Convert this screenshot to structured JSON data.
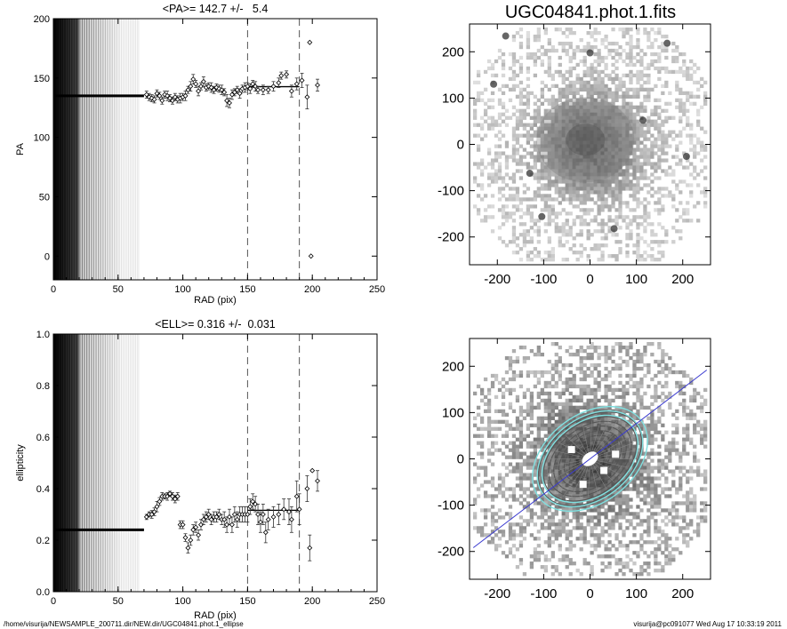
{
  "chart_data": [
    {
      "type": "scatter",
      "title": "<PA>= 142.7 +/-   5.4",
      "xlabel": "RAD (pix)",
      "ylabel": "PA",
      "xlim": [
        0,
        250
      ],
      "ylim": [
        -20,
        200
      ],
      "xticks": [
        "0",
        "50",
        "100",
        "150",
        "200",
        "250"
      ],
      "yticks": [
        "0",
        "50",
        "100",
        "150",
        "200"
      ],
      "ytick_values": [
        0,
        50,
        100,
        150,
        200
      ],
      "vlines_dashed": [
        150,
        190
      ],
      "mean_line": {
        "x": [
          150,
          190
        ],
        "y": 142.7
      },
      "inner_constant": {
        "x_end": 70,
        "y": 135
      },
      "shaded_until": 67,
      "points": [
        [
          72,
          136,
          3
        ],
        [
          74,
          134,
          3
        ],
        [
          76,
          133,
          3
        ],
        [
          78,
          132,
          3
        ],
        [
          80,
          137,
          3
        ],
        [
          82,
          135,
          3
        ],
        [
          84,
          131,
          3
        ],
        [
          86,
          136,
          3
        ],
        [
          88,
          135,
          4
        ],
        [
          90,
          133,
          3
        ],
        [
          92,
          131,
          3
        ],
        [
          94,
          134,
          3
        ],
        [
          96,
          132,
          3
        ],
        [
          98,
          133,
          4
        ],
        [
          100,
          134,
          3
        ],
        [
          102,
          135,
          4
        ],
        [
          104,
          140,
          3
        ],
        [
          106,
          143,
          4
        ],
        [
          108,
          149,
          4
        ],
        [
          110,
          145,
          3
        ],
        [
          112,
          139,
          4
        ],
        [
          114,
          143,
          3
        ],
        [
          116,
          147,
          4
        ],
        [
          118,
          142,
          3
        ],
        [
          120,
          143,
          3
        ],
        [
          122,
          142,
          4
        ],
        [
          124,
          140,
          3
        ],
        [
          126,
          142,
          3
        ],
        [
          128,
          141,
          3
        ],
        [
          130,
          140,
          4
        ],
        [
          132,
          138,
          3
        ],
        [
          134,
          131,
          5
        ],
        [
          136,
          129,
          4
        ],
        [
          138,
          136,
          4
        ],
        [
          140,
          138,
          3
        ],
        [
          142,
          140,
          3
        ],
        [
          144,
          137,
          4
        ],
        [
          146,
          141,
          3
        ],
        [
          148,
          142,
          4
        ],
        [
          150,
          143,
          3
        ],
        [
          152,
          141,
          4
        ],
        [
          154,
          145,
          3
        ],
        [
          156,
          143,
          4
        ],
        [
          158,
          140,
          3
        ],
        [
          162,
          140,
          4
        ],
        [
          166,
          140,
          3
        ],
        [
          170,
          143,
          4
        ],
        [
          174,
          146,
          4
        ],
        [
          176,
          152,
          3
        ],
        [
          180,
          153,
          3
        ],
        [
          184,
          139,
          5
        ],
        [
          188,
          145,
          5
        ],
        [
          192,
          148,
          6
        ],
        [
          196,
          134,
          10
        ],
        [
          198,
          180,
          0
        ],
        [
          199,
          0,
          0
        ],
        [
          204,
          144,
          5
        ]
      ]
    },
    {
      "type": "scatter",
      "title": "<ELL>= 0.316 +/-  0.031",
      "xlabel": "RAD (pix)",
      "ylabel": "ellipticity",
      "xlim": [
        0,
        250
      ],
      "ylim": [
        0,
        1
      ],
      "xticks": [
        "0",
        "50",
        "100",
        "150",
        "200",
        "250"
      ],
      "yticks": [
        "0.0",
        "0.2",
        "0.4",
        "0.6",
        "0.8",
        "1.0"
      ],
      "ytick_values": [
        0,
        0.2,
        0.4,
        0.6,
        0.8,
        1.0
      ],
      "vlines_dashed": [
        150,
        190
      ],
      "mean_line": {
        "x": [
          150,
          190
        ],
        "y": 0.316
      },
      "inner_constant": {
        "x_end": 70,
        "y": 0.24
      },
      "shaded_until": 67,
      "points": [
        [
          72,
          0.29,
          0.01
        ],
        [
          74,
          0.3,
          0.01
        ],
        [
          76,
          0.3,
          0.015
        ],
        [
          78,
          0.31,
          0.015
        ],
        [
          80,
          0.33,
          0.02
        ],
        [
          82,
          0.35,
          0.015
        ],
        [
          84,
          0.37,
          0.015
        ],
        [
          86,
          0.37,
          0.01
        ],
        [
          88,
          0.37,
          0.015
        ],
        [
          90,
          0.38,
          0.01
        ],
        [
          92,
          0.37,
          0.015
        ],
        [
          94,
          0.36,
          0.015
        ],
        [
          96,
          0.37,
          0.015
        ],
        [
          98,
          0.26,
          0.015
        ],
        [
          100,
          0.26,
          0.015
        ],
        [
          102,
          0.21,
          0.015
        ],
        [
          104,
          0.17,
          0.02
        ],
        [
          106,
          0.2,
          0.02
        ],
        [
          108,
          0.24,
          0.02
        ],
        [
          110,
          0.25,
          0.02
        ],
        [
          112,
          0.22,
          0.02
        ],
        [
          114,
          0.26,
          0.02
        ],
        [
          116,
          0.28,
          0.02
        ],
        [
          118,
          0.29,
          0.02
        ],
        [
          120,
          0.3,
          0.02
        ],
        [
          122,
          0.28,
          0.02
        ],
        [
          124,
          0.29,
          0.02
        ],
        [
          126,
          0.29,
          0.02
        ],
        [
          128,
          0.3,
          0.02
        ],
        [
          130,
          0.28,
          0.02
        ],
        [
          132,
          0.28,
          0.03
        ],
        [
          134,
          0.26,
          0.03
        ],
        [
          136,
          0.29,
          0.03
        ],
        [
          138,
          0.26,
          0.03
        ],
        [
          140,
          0.3,
          0.03
        ],
        [
          142,
          0.28,
          0.03
        ],
        [
          144,
          0.3,
          0.03
        ],
        [
          146,
          0.3,
          0.03
        ],
        [
          148,
          0.3,
          0.03
        ],
        [
          150,
          0.3,
          0.03
        ],
        [
          152,
          0.33,
          0.03
        ],
        [
          154,
          0.35,
          0.03
        ],
        [
          156,
          0.34,
          0.03
        ],
        [
          158,
          0.3,
          0.04
        ],
        [
          160,
          0.27,
          0.04
        ],
        [
          162,
          0.3,
          0.04
        ],
        [
          164,
          0.23,
          0.04
        ],
        [
          166,
          0.28,
          0.04
        ],
        [
          170,
          0.29,
          0.04
        ],
        [
          174,
          0.3,
          0.04
        ],
        [
          178,
          0.32,
          0.04
        ],
        [
          182,
          0.31,
          0.05
        ],
        [
          184,
          0.28,
          0.05
        ],
        [
          188,
          0.37,
          0.06
        ],
        [
          190,
          0.32,
          0.06
        ],
        [
          196,
          0.4,
          0.05
        ],
        [
          198,
          0.17,
          0.05
        ],
        [
          200,
          0.47,
          0
        ],
        [
          204,
          0.43,
          0.04
        ]
      ]
    },
    {
      "type": "heatmap",
      "title": "UGC04841.phot.1.fits",
      "xlim": [
        -260,
        260
      ],
      "ylim": [
        -260,
        260
      ],
      "xticks": [
        "-200",
        "-100",
        "0",
        "100",
        "200"
      ],
      "yticks": [
        "-200",
        "-100",
        "0",
        "100",
        "200"
      ],
      "tick_values": [
        -200,
        -100,
        0,
        100,
        200
      ],
      "grid": false
    },
    {
      "type": "heatmap",
      "title": "",
      "xlim": [
        -260,
        260
      ],
      "ylim": [
        -260,
        260
      ],
      "xticks": [
        "-200",
        "-100",
        "0",
        "100",
        "200"
      ],
      "yticks": [
        "-200",
        "-100",
        "0",
        "100",
        "200"
      ],
      "tick_values": [
        -200,
        -100,
        0,
        100,
        200
      ],
      "grid": false,
      "pa_line_deg": 142.7,
      "line_color": "#3a3ad0",
      "contour_color": "#7fe0e0"
    }
  ],
  "footer": {
    "left": "/home/visurija/NEWSAMPLE_200711.dir/NEW.dir/UGC04841.phot.1_ellipse",
    "right": "visurija@pc091077  Wed Aug 17 10:33:19 2011"
  }
}
